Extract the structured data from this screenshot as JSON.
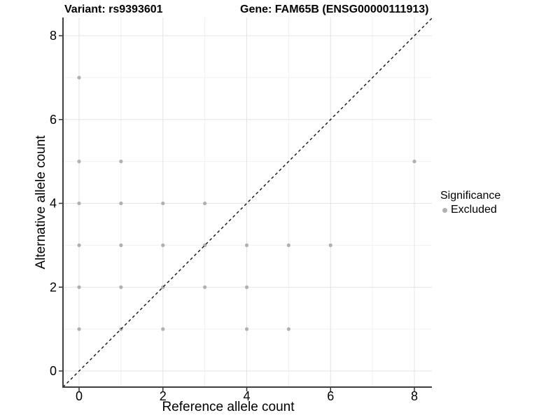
{
  "chart_data": {
    "type": "scatter",
    "title_variant": "Variant: rs9393601",
    "title_gene": "Gene: FAM65B (ENSG00000111913)",
    "xlabel": "Reference allele count",
    "ylabel": "Alternative allele count",
    "axes": {
      "xticks": [
        0,
        2,
        4,
        6,
        8
      ],
      "yticks": [
        0,
        2,
        4,
        6,
        8
      ],
      "minor_ticks": [
        1,
        3,
        5,
        7
      ],
      "xlim": [
        -0.4,
        8.4
      ],
      "ylim": [
        -0.4,
        8.4
      ],
      "grid": "major and minor, light grey on white"
    },
    "identity_line": {
      "equation": "y = x",
      "style": "dashed",
      "color": "#111111"
    },
    "series": [
      {
        "name": "Excluded",
        "marker": "circle",
        "color": "#b0b0b0",
        "points": [
          [
            0,
            1
          ],
          [
            0,
            2
          ],
          [
            0,
            3
          ],
          [
            0,
            4
          ],
          [
            0,
            5
          ],
          [
            0,
            7
          ],
          [
            1,
            1
          ],
          [
            1,
            2
          ],
          [
            1,
            3
          ],
          [
            1,
            4
          ],
          [
            1,
            5
          ],
          [
            2,
            1
          ],
          [
            2,
            2
          ],
          [
            2,
            3
          ],
          [
            2,
            4
          ],
          [
            3,
            2
          ],
          [
            3,
            3
          ],
          [
            3,
            4
          ],
          [
            4,
            1
          ],
          [
            4,
            2
          ],
          [
            4,
            3
          ],
          [
            5,
            1
          ],
          [
            5,
            3
          ],
          [
            6,
            3
          ],
          [
            8,
            5
          ]
        ]
      }
    ],
    "legend": {
      "title": "Significance",
      "position": "right",
      "items": [
        {
          "label": "Excluded",
          "color": "#b0b0b0"
        }
      ]
    },
    "style": {
      "grid_major": "#e3e3e3",
      "grid_minor": "#f1f1f1",
      "axis_line": "#3f3f3f",
      "tick_color": "#333333",
      "text_color": "#000000",
      "background": "#ffffff"
    }
  }
}
